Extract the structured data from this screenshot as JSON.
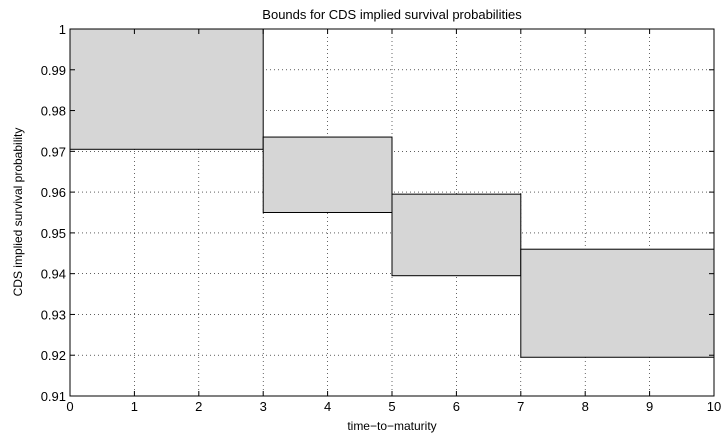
{
  "chart_data": {
    "type": "bar",
    "title": "Bounds for CDS implied survival probabilities",
    "xlabel": "time−to−maturity",
    "ylabel": "CDS implied survival probability",
    "xlim": [
      0,
      10
    ],
    "ylim": [
      0.91,
      1.0
    ],
    "grid": true,
    "xticks": [
      "0",
      "1",
      "2",
      "3",
      "4",
      "5",
      "6",
      "7",
      "8",
      "9",
      "10"
    ],
    "yticks": [
      "0.91",
      "0.92",
      "0.93",
      "0.94",
      "0.95",
      "0.96",
      "0.97",
      "0.98",
      "0.99",
      "1"
    ],
    "fill_color": "#d6d6d6",
    "boxes": [
      {
        "x0": 0,
        "x1": 3,
        "lower": 0.9705,
        "upper": 1.0
      },
      {
        "x0": 3,
        "x1": 5,
        "lower": 0.955,
        "upper": 0.9735
      },
      {
        "x0": 5,
        "x1": 7,
        "lower": 0.9395,
        "upper": 0.9595
      },
      {
        "x0": 7,
        "x1": 10,
        "lower": 0.9195,
        "upper": 0.946
      }
    ]
  }
}
